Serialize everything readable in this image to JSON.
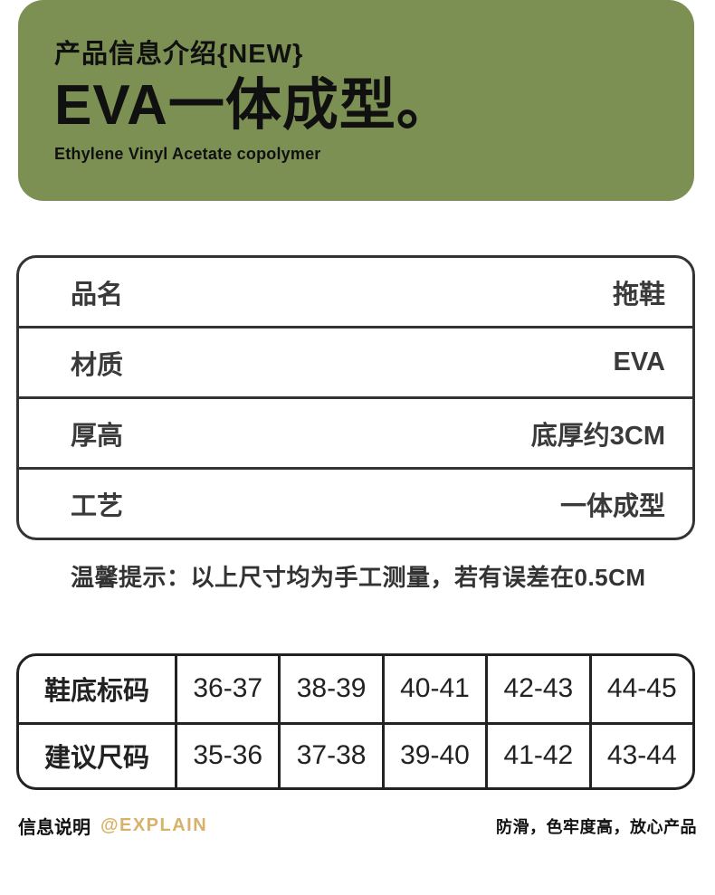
{
  "header": {
    "eyebrow": "产品信息介绍{NEW}",
    "title": "EVA一体成型。",
    "subtitle": "Ethylene Vinyl Acetate copolymer",
    "bg_color": "#7D9053",
    "text_color": "#101010"
  },
  "info_table": {
    "rows": [
      {
        "label": "品名",
        "value": "拖鞋"
      },
      {
        "label": "材质",
        "value": "EVA"
      },
      {
        "label": "厚高",
        "value": "底厚约3CM"
      },
      {
        "label": "工艺",
        "value": "一体成型"
      }
    ]
  },
  "tip": "温馨提示：以上尺寸均为手工测量，若有误差在0.5CM",
  "size_table": {
    "rows": [
      {
        "header": "鞋底标码",
        "values": [
          "36-37",
          "38-39",
          "40-41",
          "42-43",
          "44-45"
        ]
      },
      {
        "header": "建议尺码",
        "values": [
          "35-36",
          "37-38",
          "39-40",
          "41-42",
          "43-44"
        ]
      }
    ]
  },
  "footer": {
    "label": "信息说明",
    "handle": "@EXPLAIN",
    "handle_color": "#D9B26A",
    "note": "防滑，色牢度高，放心产品"
  }
}
